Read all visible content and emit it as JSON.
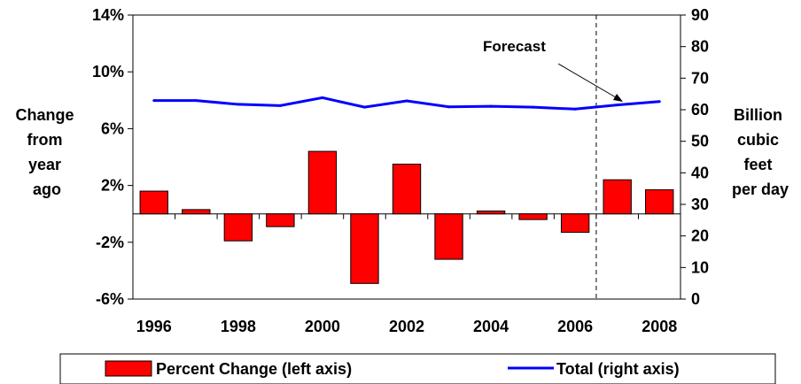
{
  "chart_data": {
    "type": "bar+line",
    "x": [
      1996,
      1997,
      1998,
      1999,
      2000,
      2001,
      2002,
      2003,
      2004,
      2005,
      2006,
      2007,
      2008
    ],
    "x_tick_labels": [
      "1996",
      "1998",
      "2000",
      "2002",
      "2004",
      "2006",
      "2008"
    ],
    "y_left_label_lines": [
      "Change",
      "from",
      "year",
      "ago"
    ],
    "y_right_label_lines": [
      "Billion",
      "cubic",
      "feet",
      "per day"
    ],
    "y_left_ticks": [
      "14%",
      "10%",
      "6%",
      "2%",
      "-2%",
      "-6%"
    ],
    "y_left_tick_values": [
      14,
      10,
      6,
      2,
      -2,
      -6
    ],
    "y_right_ticks": [
      "90",
      "80",
      "70",
      "60",
      "50",
      "40",
      "30",
      "20",
      "10",
      "0"
    ],
    "y_right_tick_values": [
      90,
      80,
      70,
      60,
      50,
      40,
      30,
      20,
      10,
      0
    ],
    "ylim_left": [
      -6,
      14
    ],
    "ylim_right": [
      0,
      90
    ],
    "series": [
      {
        "name": "Percent Change (left axis)",
        "type": "bar",
        "axis": "left",
        "color": "#ff0000",
        "values": [
          1.6,
          0.3,
          -1.9,
          -0.9,
          4.4,
          -4.9,
          3.5,
          -3.2,
          0.2,
          -0.4,
          -1.3,
          2.4,
          1.7
        ]
      },
      {
        "name": "Total (right axis)",
        "type": "line",
        "axis": "right",
        "color": "#0000ff",
        "values": [
          62.9,
          62.9,
          61.7,
          61.3,
          63.8,
          60.8,
          62.8,
          60.9,
          61.1,
          60.8,
          60.2,
          61.5,
          62.6
        ]
      }
    ],
    "annotation": "Forecast",
    "forecast_divider_after": 2006
  }
}
